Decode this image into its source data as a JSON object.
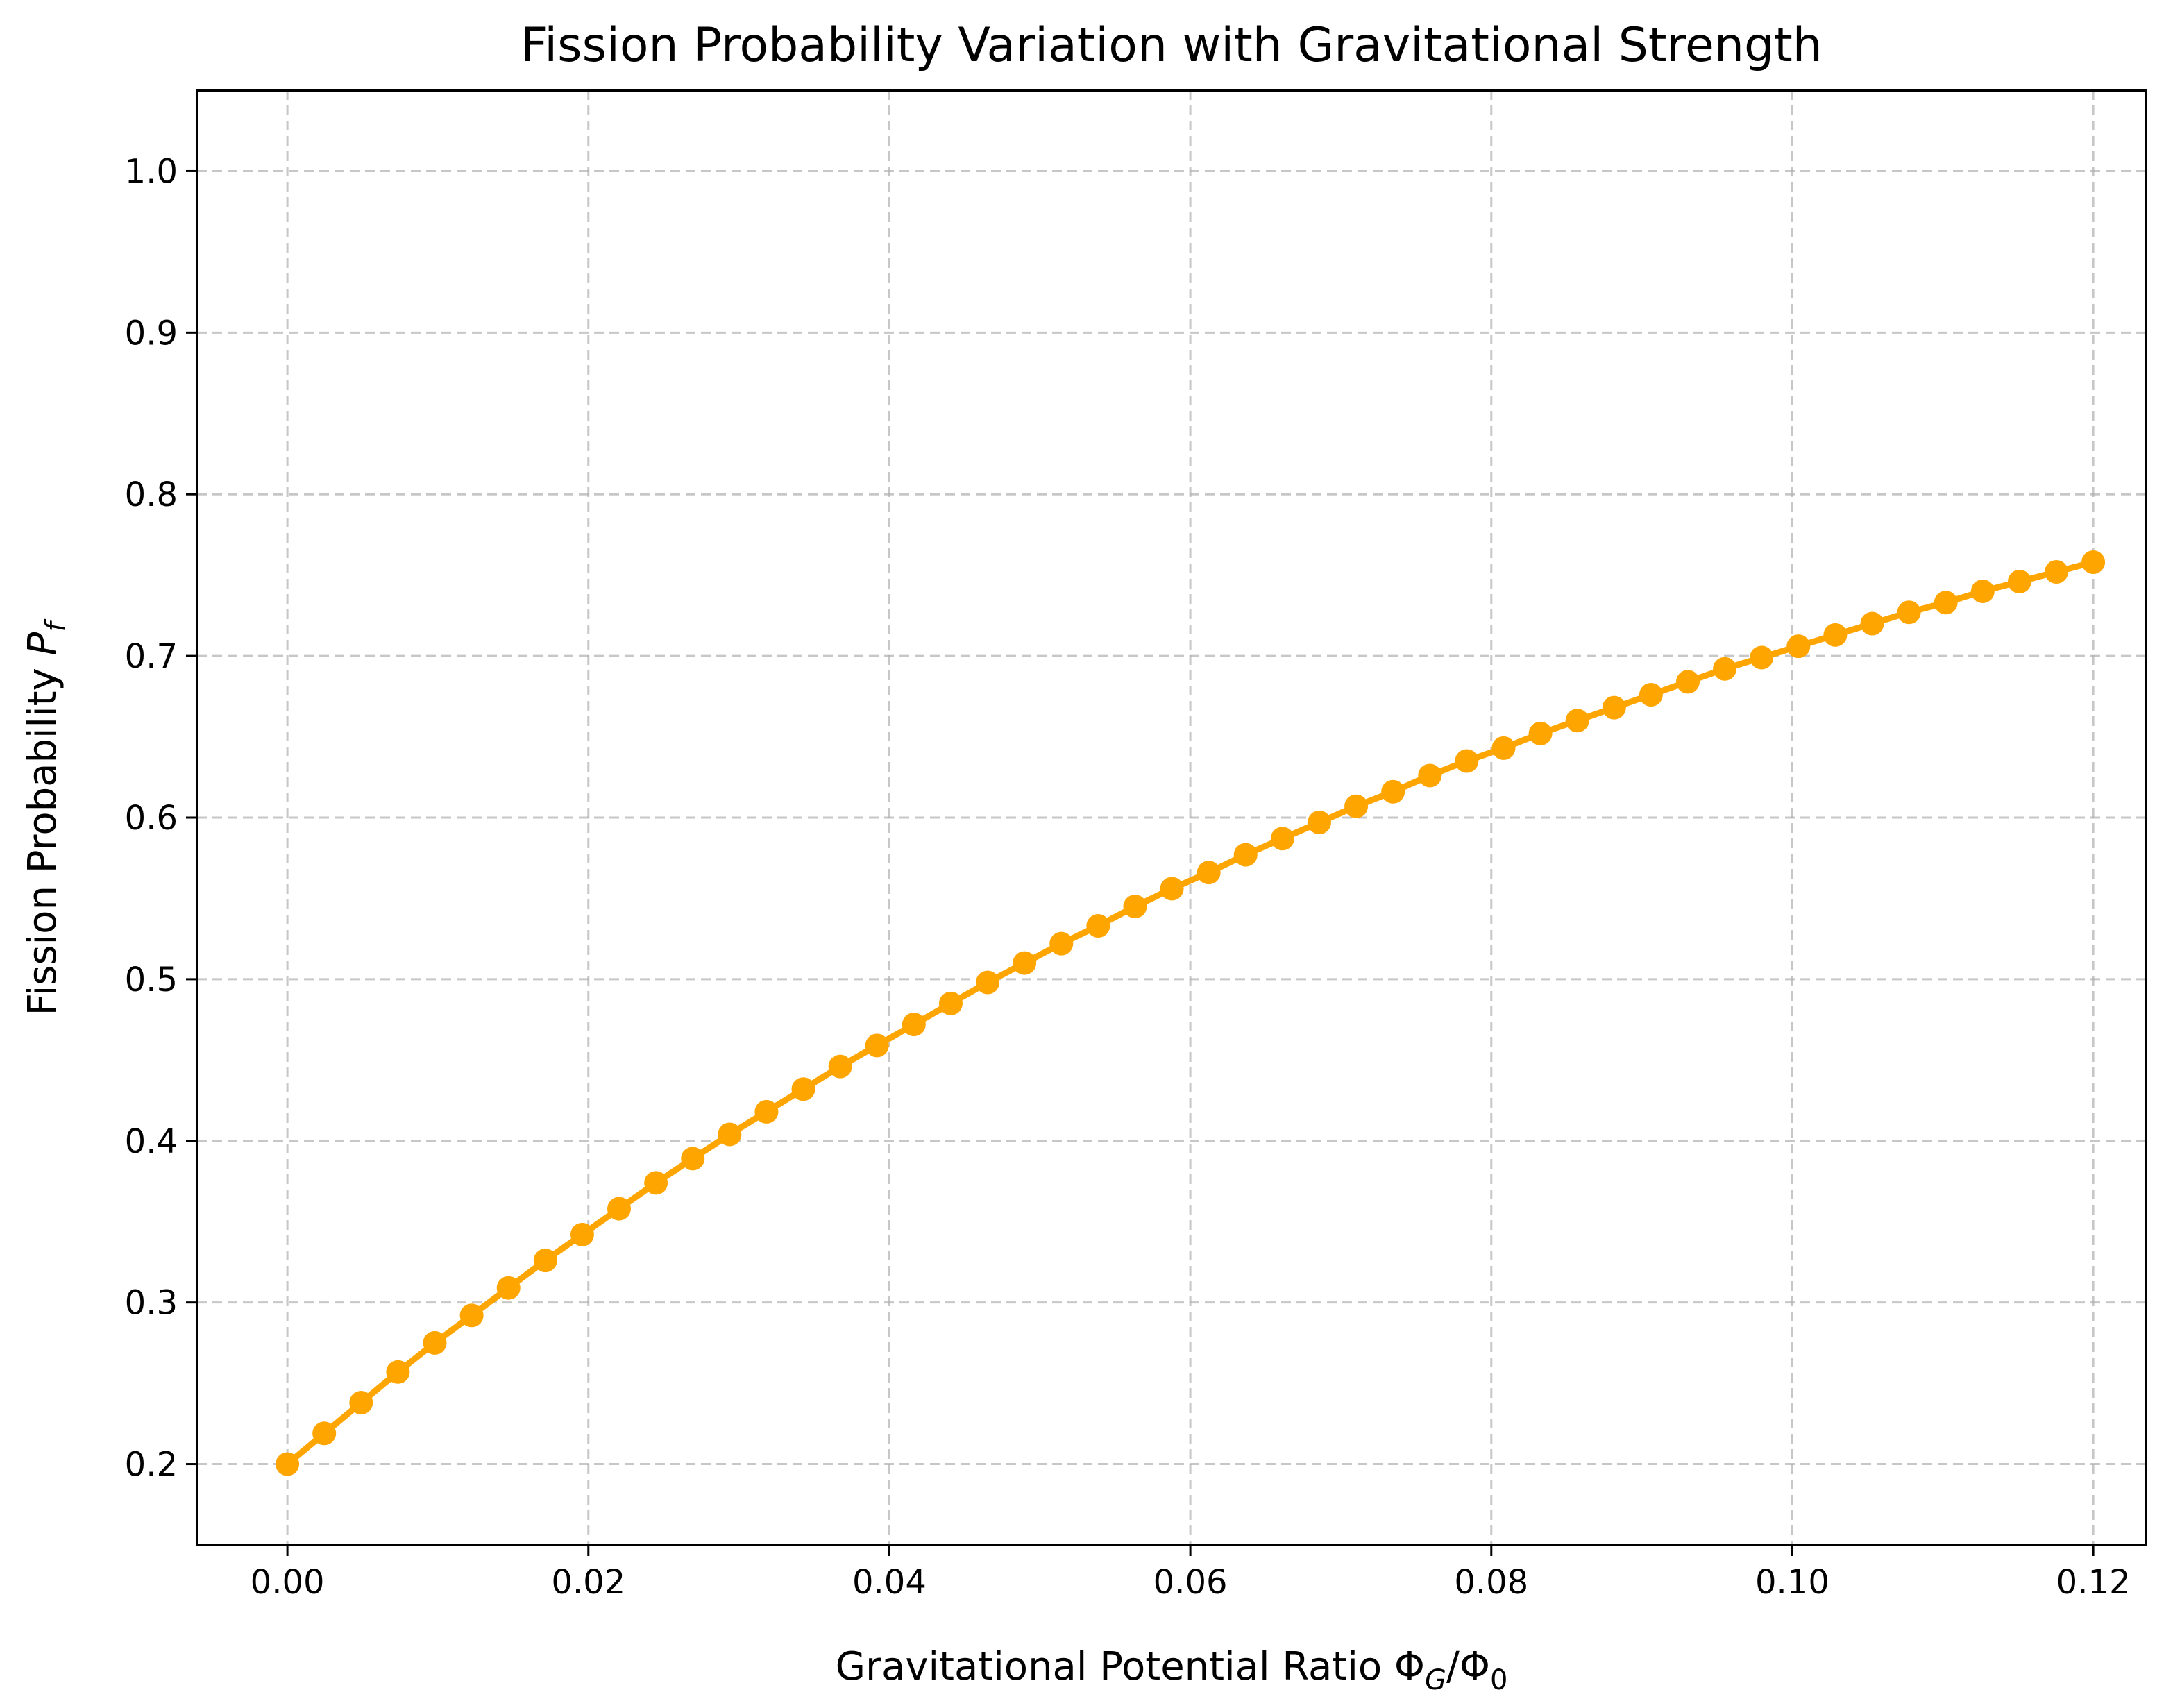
{
  "chart_data": {
    "type": "line",
    "title": "Fission Probability Variation with Gravitational Strength",
    "xlabel": "Gravitational Potential Ratio ΦG/Φ0",
    "xlabel_parts": {
      "main": "Gravitational Potential Ratio Φ",
      "sub1": "G",
      "mid": "/Φ",
      "sub2": "0"
    },
    "ylabel": "Fission Probability Pf",
    "ylabel_parts": {
      "main": "Fission Probability ",
      "italic": "P",
      "sub": "f"
    },
    "xlim": [
      -0.006,
      0.1235
    ],
    "ylim": [
      0.15,
      1.05
    ],
    "xticks": [
      0.0,
      0.02,
      0.04,
      0.06,
      0.08,
      0.1,
      0.12
    ],
    "xtick_labels": [
      "0.00",
      "0.02",
      "0.04",
      "0.06",
      "0.08",
      "0.10",
      "0.12"
    ],
    "yticks": [
      0.2,
      0.3,
      0.4,
      0.5,
      0.6,
      0.7,
      0.8,
      0.9,
      1.0
    ],
    "ytick_labels": [
      "0.2",
      "0.3",
      "0.4",
      "0.5",
      "0.6",
      "0.7",
      "0.8",
      "0.9",
      "1.0"
    ],
    "grid": true,
    "series": [
      {
        "color": "#FFA500",
        "x_start": 0.0,
        "x_end": 0.12,
        "n_points": 50,
        "y": [
          0.2,
          0.219,
          0.238,
          0.257,
          0.275,
          0.292,
          0.309,
          0.326,
          0.342,
          0.358,
          0.374,
          0.389,
          0.404,
          0.418,
          0.432,
          0.446,
          0.459,
          0.472,
          0.485,
          0.498,
          0.51,
          0.522,
          0.533,
          0.545,
          0.556,
          0.566,
          0.577,
          0.587,
          0.597,
          0.607,
          0.616,
          0.626,
          0.635,
          0.643,
          0.652,
          0.66,
          0.668,
          0.676,
          0.684,
          0.692,
          0.699,
          0.706,
          0.713,
          0.72,
          0.727,
          0.733,
          0.74,
          0.746,
          0.752,
          0.758
        ]
      }
    ]
  }
}
